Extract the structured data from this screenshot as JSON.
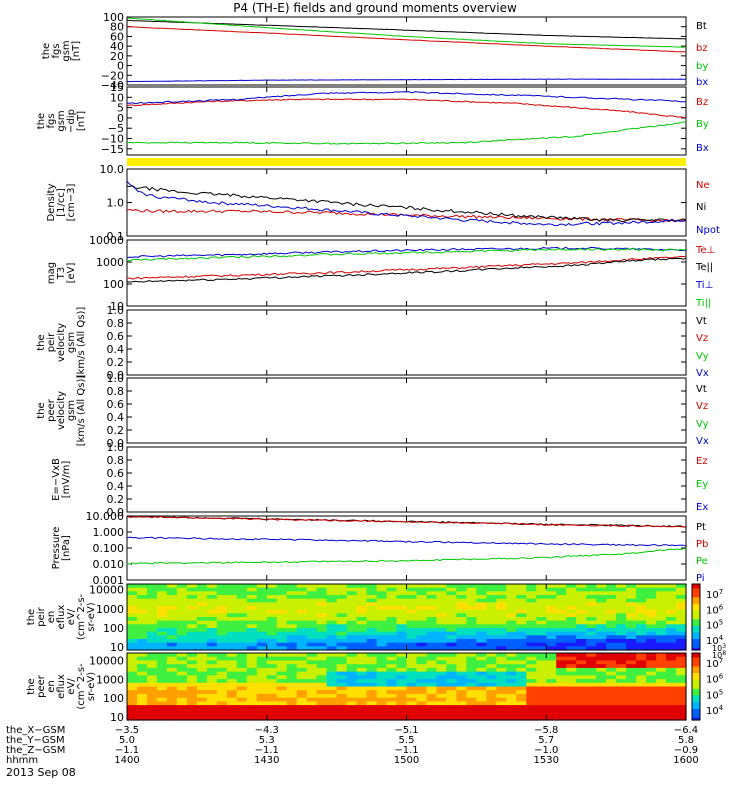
{
  "title": "P4 (TH-E) fields and ground moments overview",
  "date_label": "2013 Sep 08",
  "colors": {
    "black": "#000000",
    "red": "#d40000",
    "green": "#00c800",
    "blue": "#0000d0",
    "yellow": "#ffee00"
  },
  "chart_data": [
    {
      "type": "line",
      "id": "fgs-gsm",
      "ylabel": [
        "the",
        "fgs",
        "gsm",
        "[nT]"
      ],
      "ylim": [
        -40,
        100
      ],
      "yticks": [
        "100",
        "80",
        "60",
        "40",
        "20",
        "0",
        "−20",
        "−40"
      ],
      "ytick_values": [
        100,
        80,
        60,
        40,
        20,
        0,
        -20,
        -40
      ],
      "x": [
        1400,
        1600
      ],
      "legend": [
        "Bt",
        "bz",
        "by",
        "bx"
      ],
      "series": [
        {
          "name": "Bt",
          "color": "#000000",
          "values": [
            [
              1400,
              93
            ],
            [
              1450,
              83
            ],
            [
              1500,
              73
            ],
            [
              1550,
              62
            ],
            [
              1600,
              55
            ]
          ]
        },
        {
          "name": "bz",
          "color": "#d40000",
          "values": [
            [
              1400,
              80
            ],
            [
              1450,
              67
            ],
            [
              1500,
              53
            ],
            [
              1550,
              40
            ],
            [
              1600,
              28
            ]
          ]
        },
        {
          "name": "by",
          "color": "#00c800",
          "values": [
            [
              1400,
              98
            ],
            [
              1450,
              78
            ],
            [
              1500,
              60
            ],
            [
              1550,
              45
            ],
            [
              1600,
              38
            ]
          ]
        },
        {
          "name": "bx",
          "color": "#0000d0",
          "values": [
            [
              1400,
              -33
            ],
            [
              1450,
              -30
            ],
            [
              1500,
              -29
            ],
            [
              1550,
              -28
            ],
            [
              1600,
              -28
            ]
          ]
        }
      ]
    },
    {
      "type": "line",
      "id": "fgs-gsm-dip",
      "ylabel": [
        "the",
        "fgs",
        "gsm",
        "−dip",
        "[nT]"
      ],
      "ylim": [
        -18,
        15
      ],
      "yticks": [
        "15",
        "10",
        "5",
        "0",
        "−5",
        "−10",
        "−15"
      ],
      "ytick_values": [
        15,
        10,
        5,
        0,
        -5,
        -10,
        -15
      ],
      "x": [
        1400,
        1600
      ],
      "legend": [
        "Bz",
        "By",
        "Bx"
      ],
      "series": [
        {
          "name": "Bz",
          "color": "#d40000",
          "values": [
            [
              1400,
              6
            ],
            [
              1430,
              8
            ],
            [
              1460,
              9
            ],
            [
              1500,
              9
            ],
            [
              1540,
              7
            ],
            [
              1580,
              3
            ],
            [
              1600,
              0
            ]
          ]
        },
        {
          "name": "By",
          "color": "#00c800",
          "values": [
            [
              1400,
              -12
            ],
            [
              1440,
              -12
            ],
            [
              1480,
              -12.5
            ],
            [
              1520,
              -12
            ],
            [
              1560,
              -9
            ],
            [
              1600,
              -2
            ]
          ]
        },
        {
          "name": "Bx",
          "color": "#0000d0",
          "values": [
            [
              1400,
              7
            ],
            [
              1440,
              9
            ],
            [
              1470,
              12
            ],
            [
              1500,
              12.5
            ],
            [
              1540,
              11
            ],
            [
              1580,
              9
            ],
            [
              1600,
              8
            ]
          ]
        }
      ]
    },
    {
      "type": "line",
      "id": "density",
      "ylabel": [
        "Density",
        "[1/cc]",
        "[cm−3]"
      ],
      "yscale": "log",
      "ylim": [
        0.1,
        10
      ],
      "yticks": [
        "10.0",
        "1.0",
        "0.1"
      ],
      "ytick_values": [
        10,
        1,
        0.1
      ],
      "x": [
        1400,
        1600
      ],
      "legend": [
        "Ne",
        "Ni",
        "Npot"
      ],
      "series": [
        {
          "name": "Ne",
          "color": "#d40000",
          "values": [
            [
              1400,
              0.6
            ],
            [
              1410,
              0.55
            ],
            [
              1440,
              0.55
            ],
            [
              1470,
              0.5
            ],
            [
              1500,
              0.42
            ],
            [
              1540,
              0.35
            ],
            [
              1580,
              0.3
            ],
            [
              1600,
              0.28
            ]
          ]
        },
        {
          "name": "Ni",
          "color": "#000000",
          "values": [
            [
              1400,
              3
            ],
            [
              1420,
              2
            ],
            [
              1450,
              1.4
            ],
            [
              1480,
              0.9
            ],
            [
              1510,
              0.6
            ],
            [
              1540,
              0.4
            ],
            [
              1570,
              0.3
            ],
            [
              1600,
              0.3
            ]
          ]
        },
        {
          "name": "Npot",
          "color": "#0000d0",
          "values": [
            [
              1400,
              4
            ],
            [
              1404,
              2
            ],
            [
              1410,
              1.5
            ],
            [
              1430,
              1.0
            ],
            [
              1460,
              0.7
            ],
            [
              1490,
              0.45
            ],
            [
              1520,
              0.3
            ],
            [
              1550,
              0.22
            ],
            [
              1580,
              0.25
            ],
            [
              1600,
              0.3
            ]
          ]
        }
      ]
    },
    {
      "type": "line",
      "id": "temperature",
      "ylabel": [
        "mag",
        "T3",
        "[eV]"
      ],
      "yscale": "log",
      "ylim": [
        10,
        10000
      ],
      "yticks": [
        "10000",
        "1000",
        "100",
        "10"
      ],
      "ytick_values": [
        10000,
        1000,
        100,
        10
      ],
      "x": [
        1400,
        1600
      ],
      "legend": [
        "Te⊥",
        "Te||",
        "Ti⊥",
        "Ti||"
      ],
      "series": [
        {
          "name": "Te⊥",
          "color": "#d40000",
          "values": [
            [
              1400,
              180
            ],
            [
              1440,
              250
            ],
            [
              1480,
              350
            ],
            [
              1520,
              550
            ],
            [
              1560,
              900
            ],
            [
              1590,
              1500
            ],
            [
              1600,
              1700
            ]
          ]
        },
        {
          "name": "Te||",
          "color": "#000000",
          "values": [
            [
              1400,
              120
            ],
            [
              1440,
              170
            ],
            [
              1480,
              250
            ],
            [
              1520,
              400
            ],
            [
              1560,
              700
            ],
            [
              1590,
              1300
            ],
            [
              1600,
              1500
            ]
          ]
        },
        {
          "name": "Ti⊥",
          "color": "#0000d0",
          "values": [
            [
              1400,
              1700
            ],
            [
              1440,
              2200
            ],
            [
              1480,
              3000
            ],
            [
              1520,
              3800
            ],
            [
              1560,
              4300
            ],
            [
              1600,
              3500
            ]
          ]
        },
        {
          "name": "Ti||",
          "color": "#00c800",
          "values": [
            [
              1400,
              1200
            ],
            [
              1440,
              1700
            ],
            [
              1480,
              2300
            ],
            [
              1520,
              3000
            ],
            [
              1560,
              3800
            ],
            [
              1600,
              3500
            ]
          ]
        }
      ]
    },
    {
      "type": "line",
      "id": "peir-velocity",
      "ylabel": [
        "the",
        "peir",
        "velocity",
        "gsm",
        "[km/s (All Qs)]"
      ],
      "ylim": [
        0,
        1
      ],
      "yticks": [
        "1.0",
        "0.8",
        "0.6",
        "0.4",
        "0.2",
        "0.0"
      ],
      "ytick_values": [
        1,
        0.8,
        0.6,
        0.4,
        0.2,
        0
      ],
      "legend": [
        "Vt",
        "Vz",
        "Vy",
        "Vx"
      ],
      "series": []
    },
    {
      "type": "line",
      "id": "peer-velocity",
      "ylabel": [
        "the",
        "peer",
        "velocity",
        "gsm",
        "[km/s (All Qs)]"
      ],
      "ylim": [
        0,
        1
      ],
      "yticks": [
        "1.0",
        "0.8",
        "0.6",
        "0.4",
        "0.2",
        "0.0"
      ],
      "ytick_values": [
        1,
        0.8,
        0.6,
        0.4,
        0.2,
        0
      ],
      "legend": [
        "Vt",
        "Vz",
        "Vy",
        "Vx"
      ],
      "series": []
    },
    {
      "type": "line",
      "id": "efield",
      "ylabel": [
        "E=−VxB",
        "[mV/m]"
      ],
      "ylim": [
        0,
        1
      ],
      "yticks": [
        "1.0",
        "0.8",
        "0.6",
        "0.4",
        "0.2",
        "0.0"
      ],
      "ytick_values": [
        1,
        0.8,
        0.6,
        0.4,
        0.2,
        0
      ],
      "legend": [
        "Ez",
        "Ey",
        "Ex"
      ],
      "series": []
    },
    {
      "type": "line",
      "id": "pressure",
      "ylabel": [
        "Pressure",
        "[nPa]"
      ],
      "yscale": "log",
      "ylim": [
        0.001,
        10
      ],
      "yticks": [
        "10.000",
        "1.000",
        "0.100",
        "0.010",
        "0.001"
      ],
      "ytick_values": [
        10,
        1,
        0.1,
        0.01,
        0.001
      ],
      "x": [
        1400,
        1600
      ],
      "legend": [
        "Pt",
        "Pb",
        "Pe",
        "Pi"
      ],
      "series": [
        {
          "name": "Pt",
          "color": "#000000",
          "values": [
            [
              1400,
              9.5
            ],
            [
              1450,
              6.5
            ],
            [
              1500,
              4.5
            ],
            [
              1550,
              3
            ],
            [
              1600,
              2.2
            ]
          ]
        },
        {
          "name": "Pb",
          "color": "#d40000",
          "values": [
            [
              1400,
              9
            ],
            [
              1450,
              6.2
            ],
            [
              1500,
              4.3
            ],
            [
              1550,
              2.9
            ],
            [
              1600,
              2.1
            ]
          ]
        },
        {
          "name": "Pe",
          "color": "#00c800",
          "values": [
            [
              1400,
              0.011
            ],
            [
              1450,
              0.013
            ],
            [
              1500,
              0.016
            ],
            [
              1550,
              0.025
            ],
            [
              1580,
              0.045
            ],
            [
              1600,
              0.09
            ]
          ]
        },
        {
          "name": "Pi",
          "color": "#0000d0",
          "values": [
            [
              1400,
              0.45
            ],
            [
              1450,
              0.35
            ],
            [
              1500,
              0.25
            ],
            [
              1550,
              0.18
            ],
            [
              1600,
              0.14
            ]
          ]
        }
      ]
    },
    {
      "type": "heatmap",
      "id": "peir-eflux",
      "ylabel": [
        "the",
        "peir",
        "en",
        "eflux",
        "eV/",
        "(cm^2-s-",
        "sr-eV)"
      ],
      "yscale": "log",
      "ylim": [
        7,
        20000
      ],
      "yticks": [
        "10000",
        "1000",
        "100",
        "10"
      ],
      "ytick_values": [
        10000,
        1000,
        100,
        10
      ],
      "colorbar_ticks": [
        "10^7",
        "10^6",
        "10^5",
        "10^4"
      ],
      "colorbar_extra": "10^3"
    },
    {
      "type": "heatmap",
      "id": "peer-eflux",
      "ylabel": [
        "the",
        "peer",
        "en",
        "eflux",
        "eV/",
        "(cm^2-s-",
        "sr-eV)"
      ],
      "yscale": "log",
      "ylim": [
        7,
        25000
      ],
      "yticks": [
        "10000",
        "1000",
        "100",
        "10"
      ],
      "ytick_values": [
        10000,
        1000,
        100,
        10
      ],
      "colorbar_ticks": [
        "10^7",
        "10^6",
        "10^5",
        "10^4"
      ],
      "colorbar_extra": "10^8"
    }
  ],
  "xaxis": {
    "row_labels": [
      "the_X−GSM",
      "the_Y−GSM",
      "the_Z−GSM",
      "hhmm"
    ],
    "columns": [
      [
        "−3.5",
        "5.0",
        "−1.1",
        "1400"
      ],
      [
        "−4.3",
        "5.3",
        "−1.1",
        "1430"
      ],
      [
        "−5.1",
        "5.5",
        "−1.1",
        "1500"
      ],
      [
        "−5.8",
        "5.7",
        "−1.0",
        "1530"
      ],
      [
        "−6.4",
        "5.8",
        "−0.9",
        "1600"
      ]
    ]
  }
}
